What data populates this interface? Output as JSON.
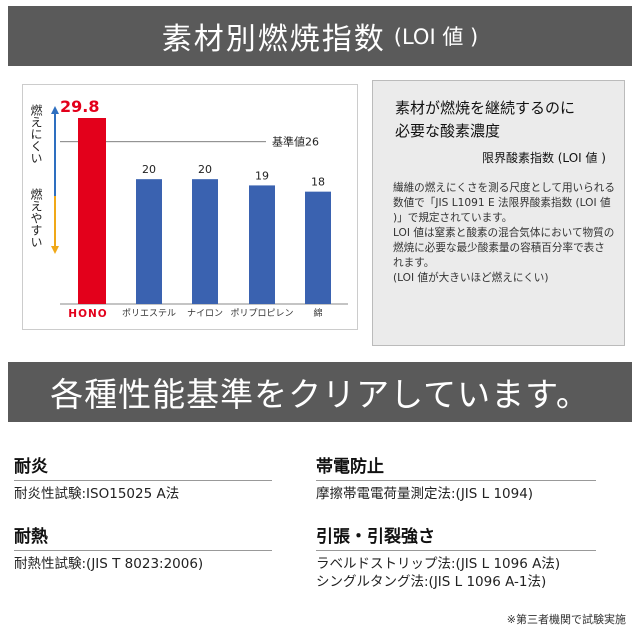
{
  "banner_top": {
    "title": "素材別燃焼指数",
    "subtitle": "(LOI 値 )"
  },
  "chart_data": {
    "type": "bar",
    "categories": [
      "HONO",
      "ポリエステル",
      "ナイロン",
      "ポリプロピレン",
      "綿"
    ],
    "values": [
      29.8,
      20,
      20,
      19,
      18
    ],
    "value_labels": [
      "29.8",
      "20",
      "20",
      "19",
      "18"
    ],
    "ylim": [
      0,
      32
    ],
    "reference": {
      "value": 26,
      "label": "基準値26"
    },
    "axis_top_label": "燃えにくい",
    "axis_bottom_label": "燃えやすい",
    "colors": {
      "highlight": "#e3001b",
      "default": "#3a62b0",
      "arrow_top": "#2e6fc0",
      "arrow_bottom": "#f0a818"
    }
  },
  "info": {
    "heading_line1": "素材が燃焼を継続するのに",
    "heading_line2": "必要な酸素濃度",
    "subheading": "限界酸素指数 (LOI 値 )",
    "para1": "繊維の燃えにくさを測る尺度として用いられる数値で「JIS L1091 E 法限界酸素指数 (LOI 値 )」で規定されています。",
    "para2": "LOI 値は窒素と酸素の混合気体において物質の燃焼に必要な最少酸素量の容積百分率で表されます。",
    "para3": "(LOI 値が大きいほど燃えにくい)"
  },
  "banner_bottom": {
    "title": "各種性能基準をクリアしています。"
  },
  "performance": [
    {
      "title": "耐炎",
      "lines": [
        "耐炎性試験:ISO15025 A法"
      ]
    },
    {
      "title": "帯電防止",
      "lines": [
        "摩擦帯電電荷量測定法:(JIS L 1094)"
      ]
    },
    {
      "title": "耐熱",
      "lines": [
        "耐熱性試験:(JIS T 8023:2006)"
      ]
    },
    {
      "title": "引張・引裂強さ",
      "lines": [
        "ラベルドストリップ法:(JIS L 1096 A法)",
        "シングルタング法:(JIS L 1096 A-1法)"
      ]
    }
  ],
  "footnote": "※第三者機関で試験実施"
}
